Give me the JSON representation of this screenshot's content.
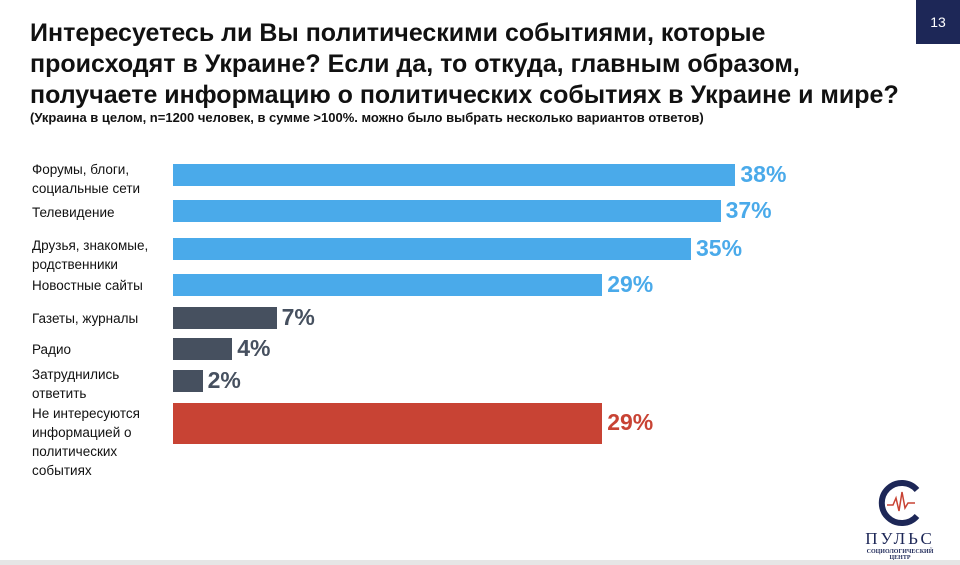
{
  "page_number": "13",
  "chart_data": {
    "type": "bar",
    "title": "Интересуетесь ли Вы политическими событиями, которые происходят в Украине? Если да, то откуда, главным образом, получаете информацию о политических событиях в Украине и мире?",
    "subtitle": "(Украина в целом, n=1200 человек, в сумме >100%. можно было выбрать несколько вариантов ответов)",
    "categories": [
      "Форумы, блоги, социальные сети",
      "Телевидение",
      "Друзья, знакомые, родственники",
      "Новостные сайты",
      "Газеты, журналы",
      "Радио",
      "Затруднились ответить",
      "Не интересуются информацией о политических событиях"
    ],
    "values": [
      38,
      37,
      35,
      29,
      7,
      4,
      2,
      29
    ],
    "value_labels": [
      "38%",
      "37%",
      "35%",
      "29%",
      "7%",
      "4%",
      "2%",
      "29%"
    ],
    "bar_colors": [
      "#4aaaea",
      "#4aaaea",
      "#4aaaea",
      "#4aaaea",
      "#46505f",
      "#46505f",
      "#46505f",
      "#c84334"
    ],
    "xlabel": "",
    "ylabel": "",
    "xlim": [
      0,
      40
    ]
  },
  "logo": {
    "name": "ПУЛЬС",
    "tagline1": "СОЦИОЛОГИЧЕСКИЙ",
    "tagline2": "ЦЕНТР"
  }
}
